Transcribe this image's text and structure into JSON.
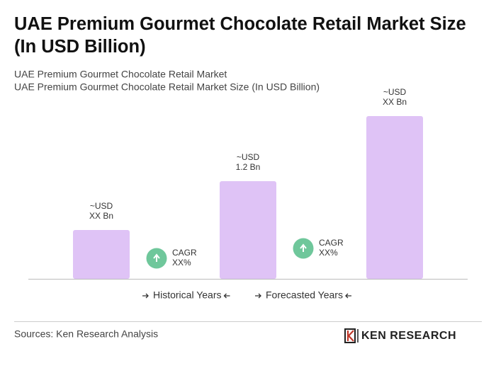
{
  "chart_data": {
    "type": "bar",
    "title": "UAE Premium Gourmet Chocolate Retail Market Size (In USD Billion)",
    "subtitle": [
      "UAE Premium Gourmet Chocolate Retail Market",
      "UAE Premium Gourmet Chocolate Retail Market Size (In USD Billion)"
    ],
    "categories": [
      null,
      null,
      null
    ],
    "values": [
      0.6,
      1.2,
      2.0
    ],
    "value_labels": [
      [
        "~USD",
        "XX Bn"
      ],
      [
        "~USD",
        "1.2 Bn"
      ],
      [
        "~USD",
        "XX Bn"
      ]
    ],
    "color": "#dfc3f6",
    "ylim": [
      0,
      2
    ],
    "annotations": [
      [
        "CAGR",
        "XX%"
      ],
      [
        "CAGR",
        "XX%"
      ]
    ],
    "annotation_color": "#6fc79b",
    "periods": [
      "Historical Years",
      "Forecasted Years"
    ],
    "source": "Sources: Ken Research Analysis",
    "logo": "KEN RESEARCH"
  }
}
